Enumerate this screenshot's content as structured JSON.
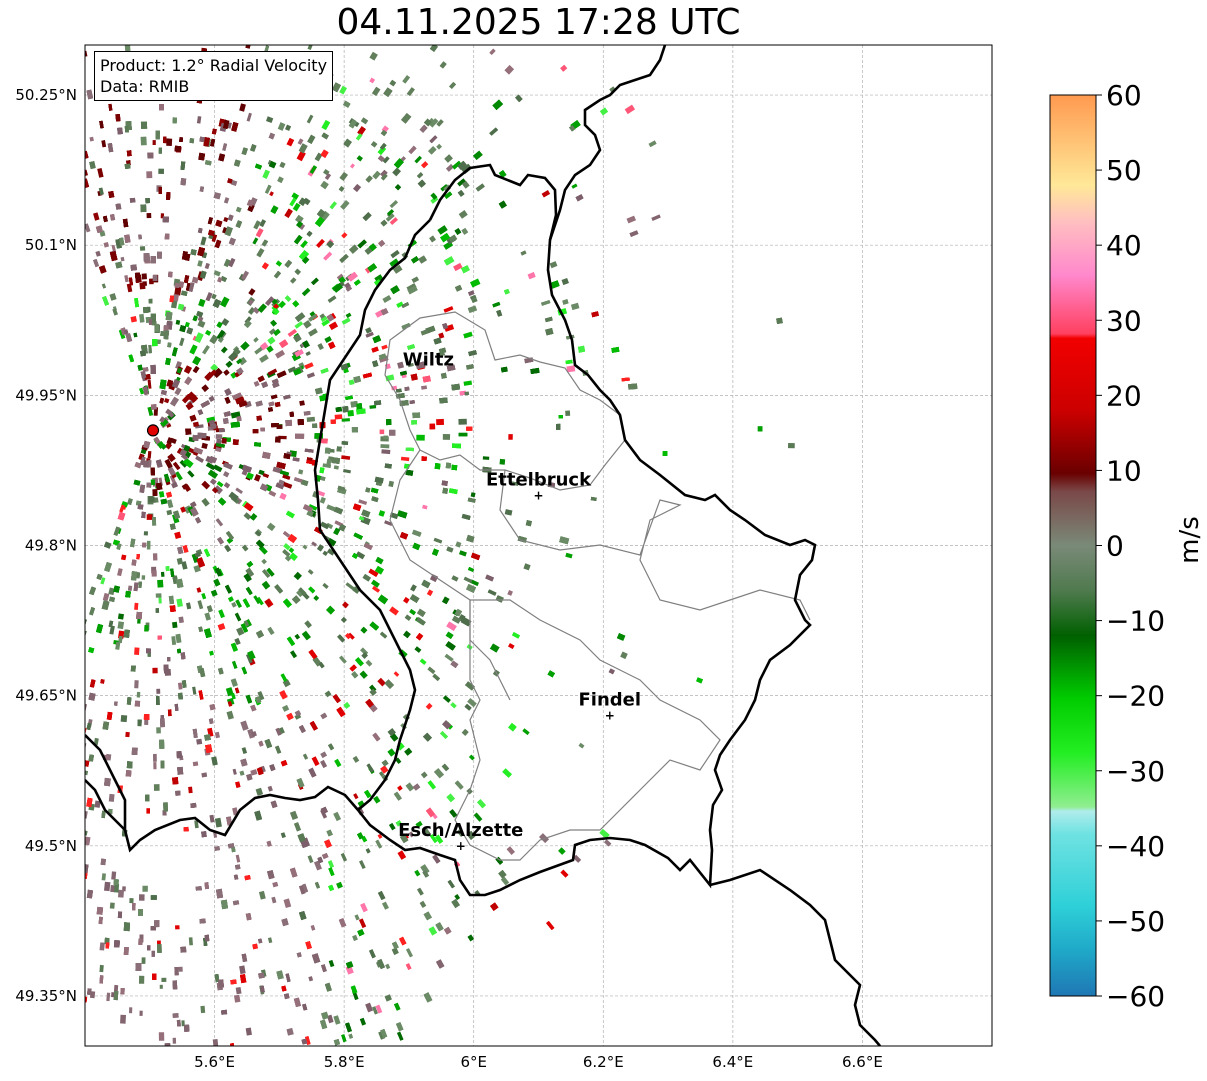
{
  "title": "04.11.2025 17:28 UTC",
  "info": {
    "product": "Product: 1.2° Radial Velocity",
    "data": "Data: RMIB"
  },
  "axes": {
    "lat_ticks": [
      "50.25°N",
      "50.1°N",
      "49.95°N",
      "49.8°N",
      "49.65°N",
      "49.5°N",
      "49.35°N"
    ],
    "lon_ticks": [
      "5.6°E",
      "5.8°E",
      "6°E",
      "6.2°E",
      "6.4°E",
      "6.6°E"
    ],
    "lat_values": [
      50.25,
      50.1,
      49.95,
      49.8,
      49.65,
      49.5,
      49.35
    ],
    "lon_values": [
      5.6,
      5.8,
      6.0,
      6.2,
      6.4,
      6.6
    ],
    "lon_range": [
      5.4,
      6.8
    ],
    "lat_range": [
      49.3,
      50.3
    ]
  },
  "places": [
    {
      "name": "Wiltz",
      "lon": 5.93,
      "lat": 49.97,
      "marker": false
    },
    {
      "name": "Ettelbruck",
      "lon": 6.1,
      "lat": 49.85,
      "marker": true
    },
    {
      "name": "Findel",
      "lon": 6.21,
      "lat": 49.63,
      "marker": true
    },
    {
      "name": "Esch/Alzette",
      "lon": 5.98,
      "lat": 49.5,
      "marker": true
    }
  ],
  "radar_site": {
    "lon": 5.505,
    "lat": 49.915,
    "color": "#e00000"
  },
  "colorbar": {
    "label": "m/s",
    "min": -60,
    "max": 60,
    "ticks": [
      "60",
      "50",
      "40",
      "30",
      "20",
      "10",
      "0",
      "−10",
      "−20",
      "−30",
      "−40",
      "−50",
      "−60"
    ],
    "tick_values": [
      60,
      50,
      40,
      30,
      20,
      10,
      0,
      -10,
      -20,
      -30,
      -40,
      -50,
      -60
    ]
  },
  "colors": {
    "positive_strong": "#e00000",
    "positive_dark": "#7a0000",
    "near_zero_pos": "#836570",
    "near_zero_neg": "#5a7a55",
    "negative": "#00a000",
    "negative_light": "#22ee22",
    "border": "#000000",
    "admin": "#808080",
    "grid": "#b0b0b0"
  }
}
